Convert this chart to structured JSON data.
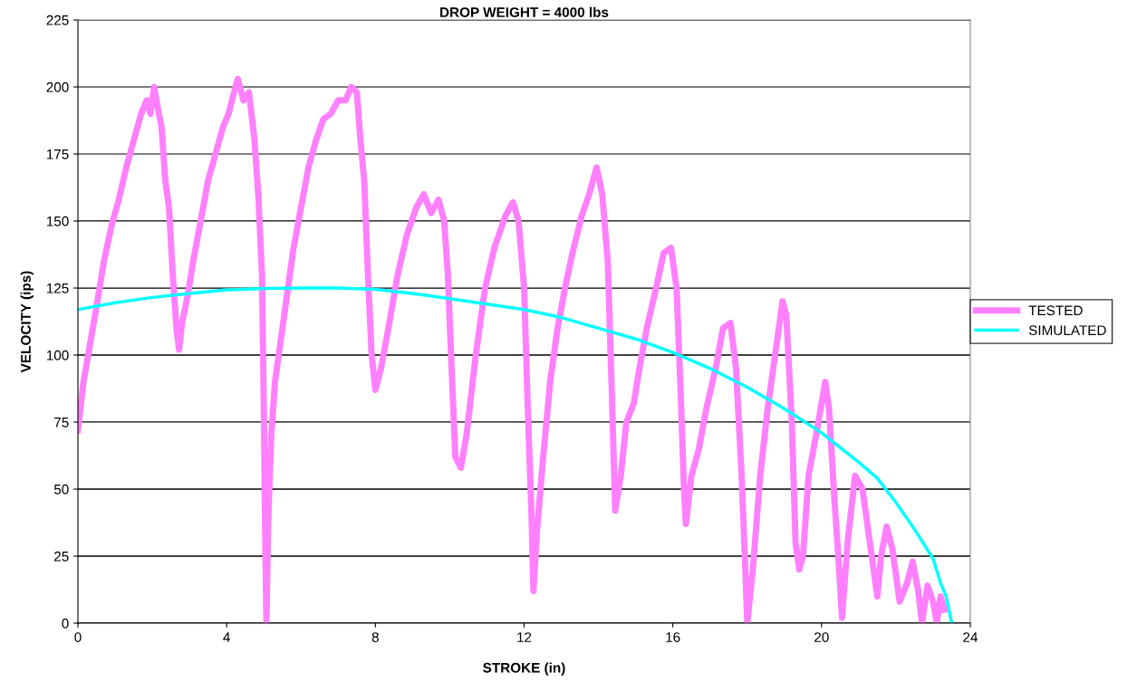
{
  "chart_data": {
    "type": "line",
    "title": "DROP WEIGHT = 4000 lbs",
    "xlabel": "STROKE (in)",
    "ylabel": "VELOCITY (ips)",
    "xlim": [
      0,
      24
    ],
    "xticks": [
      0,
      4,
      8,
      12,
      16,
      20,
      24
    ],
    "ylim": [
      0,
      225
    ],
    "yticks": [
      0,
      25,
      50,
      75,
      100,
      125,
      150,
      175,
      200,
      225
    ],
    "grid": "y",
    "legend": "right",
    "marker": "none",
    "line_style": "solid",
    "series": [
      {
        "name": "TESTED",
        "color": "#ff80ff",
        "x": [
          0,
          0.15,
          0.3,
          0.5,
          0.7,
          0.9,
          1.1,
          1.3,
          1.5,
          1.7,
          1.85,
          1.95,
          2.05,
          2.15,
          2.25,
          2.35,
          2.45,
          2.55,
          2.65,
          2.72,
          2.8,
          2.95,
          3.1,
          3.3,
          3.5,
          3.7,
          3.9,
          4.05,
          4.2,
          4.3,
          4.45,
          4.6,
          4.75,
          4.85,
          4.95,
          5.0,
          5.03,
          5.07,
          5.12,
          5.2,
          5.3,
          5.45,
          5.6,
          5.8,
          6.0,
          6.2,
          6.4,
          6.6,
          6.8,
          7.0,
          7.2,
          7.35,
          7.5,
          7.6,
          7.7,
          7.8,
          7.9,
          8.0,
          8.15,
          8.35,
          8.6,
          8.85,
          9.1,
          9.3,
          9.5,
          9.7,
          9.85,
          9.95,
          10.05,
          10.15,
          10.3,
          10.45,
          10.7,
          10.95,
          11.2,
          11.5,
          11.7,
          11.85,
          12.0,
          12.1,
          12.2,
          12.25,
          12.35,
          12.5,
          12.7,
          12.9,
          13.1,
          13.3,
          13.55,
          13.75,
          13.95,
          14.1,
          14.25,
          14.35,
          14.45,
          14.6,
          14.75,
          14.95,
          15.1,
          15.3,
          15.55,
          15.75,
          15.95,
          16.1,
          16.2,
          16.3,
          16.35,
          16.5,
          16.7,
          16.9,
          17.15,
          17.35,
          17.55,
          17.7,
          17.85,
          17.95,
          18.0,
          18.15,
          18.35,
          18.55,
          18.75,
          18.95,
          19.05,
          19.2,
          19.3,
          19.4,
          19.5,
          19.65,
          19.85,
          20.1,
          20.2,
          20.35,
          20.45,
          20.55,
          20.7,
          20.9,
          21.1,
          21.3,
          21.5,
          21.6,
          21.75,
          21.9,
          22.0,
          22.1,
          22.3,
          22.45,
          22.6,
          22.7,
          22.85,
          23.0,
          23.1,
          23.2,
          23.3
        ],
        "values": [
          72,
          90,
          102,
          118,
          135,
          148,
          158,
          170,
          180,
          190,
          195,
          190,
          200,
          192,
          185,
          165,
          155,
          130,
          110,
          102,
          112,
          122,
          135,
          150,
          165,
          175,
          185,
          190,
          198,
          203,
          195,
          198,
          180,
          160,
          130,
          80,
          40,
          0,
          40,
          70,
          90,
          105,
          120,
          140,
          155,
          170,
          180,
          188,
          190,
          195,
          195,
          200,
          198,
          180,
          165,
          130,
          100,
          87,
          95,
          110,
          130,
          145,
          155,
          160,
          153,
          158,
          150,
          130,
          95,
          62,
          58,
          70,
          100,
          125,
          140,
          152,
          157,
          150,
          125,
          80,
          40,
          12,
          35,
          60,
          90,
          110,
          125,
          138,
          152,
          160,
          170,
          160,
          135,
          90,
          42,
          55,
          75,
          82,
          95,
          110,
          125,
          138,
          140,
          125,
          90,
          50,
          37,
          55,
          65,
          80,
          95,
          110,
          112,
          95,
          55,
          20,
          0,
          20,
          55,
          80,
          100,
          120,
          115,
          75,
          30,
          20,
          25,
          55,
          70,
          90,
          80,
          45,
          25,
          2,
          30,
          55,
          50,
          30,
          10,
          25,
          36,
          28,
          18,
          8,
          15,
          23,
          12,
          0,
          14,
          8,
          0,
          10,
          5
        ]
      },
      {
        "name": "SIMULATED",
        "color": "#00ffff",
        "x": [
          0,
          1,
          2,
          3,
          4,
          5,
          6,
          7,
          8,
          9,
          10,
          11,
          12,
          13,
          14,
          15,
          16,
          17,
          18,
          19,
          20,
          21,
          21.5,
          22,
          22.5,
          23,
          23.2,
          23.35,
          23.5
        ],
        "values": [
          117,
          119.5,
          121.5,
          123,
          124.3,
          124.8,
          125,
          125,
          124.5,
          123,
          121,
          119,
          117,
          114,
          110,
          106,
          101,
          95,
          88,
          80,
          71,
          60,
          54,
          45,
          35,
          24,
          15,
          10,
          0
        ]
      }
    ]
  }
}
